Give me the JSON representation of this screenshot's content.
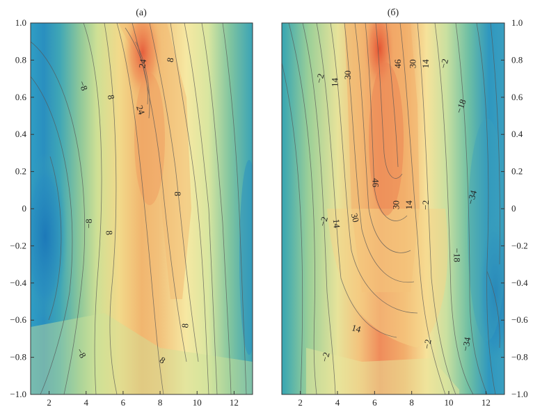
{
  "chart_data": [
    {
      "type": "heatmap",
      "title": "(а)",
      "xlabel": "",
      "ylabel": "",
      "xlim": [
        1,
        13
      ],
      "ylim": [
        -1.0,
        1.0
      ],
      "x_ticks": [
        "2",
        "4",
        "6",
        "8",
        "10",
        "12"
      ],
      "y_ticks": [
        "1.0",
        "0.8",
        "0.6",
        "0.4",
        "0.2",
        "0",
        "−0.2",
        "−0.4",
        "−0.6",
        "−0.8",
        "−1.0"
      ],
      "y_axis_side": "left",
      "colormap": "blue-green-yellow-orange-red",
      "contour_labels": [
        {
          "text": "24",
          "x": 7.1,
          "y": 0.78,
          "angle": -80
        },
        {
          "text": "24",
          "x": 6.9,
          "y": 0.53,
          "angle": 70
        },
        {
          "text": "8",
          "x": 8.6,
          "y": 0.8,
          "angle": -80
        },
        {
          "text": "−8",
          "x": 3.8,
          "y": 0.66,
          "angle": 70
        },
        {
          "text": "8",
          "x": 5.3,
          "y": 0.6,
          "angle": 80
        },
        {
          "text": "8",
          "x": 8.9,
          "y": 0.08,
          "angle": 90
        },
        {
          "text": "−8",
          "x": 4.2,
          "y": -0.08,
          "angle": -90
        },
        {
          "text": "8",
          "x": 5.2,
          "y": -0.13,
          "angle": 85
        },
        {
          "text": "8",
          "x": 9.4,
          "y": -0.63,
          "angle": -85
        },
        {
          "text": "−8",
          "x": 3.7,
          "y": -0.78,
          "angle": 60
        },
        {
          "text": "8",
          "x": 8.1,
          "y": -0.82,
          "angle": 35
        }
      ]
    },
    {
      "type": "heatmap",
      "title": "(б)",
      "xlabel": "",
      "ylabel": "",
      "xlim": [
        1,
        13
      ],
      "ylim": [
        -1.0,
        1.0
      ],
      "x_ticks": [
        "2",
        "4",
        "6",
        "8",
        "10",
        "12"
      ],
      "y_ticks": [
        "1.0",
        "0.8",
        "0.6",
        "0.4",
        "0.2",
        "0",
        "−0.2",
        "−0.4",
        "−0.6",
        "−0.8",
        "−1.0"
      ],
      "y_axis_side": "right",
      "colormap": "blue-green-yellow-orange-red",
      "contour_labels": [
        {
          "text": "30",
          "x": 4.6,
          "y": 0.72,
          "angle": -90
        },
        {
          "text": "46",
          "x": 7.3,
          "y": 0.78,
          "angle": -90
        },
        {
          "text": "30",
          "x": 8.1,
          "y": 0.78,
          "angle": -90
        },
        {
          "text": "14",
          "x": 8.8,
          "y": 0.78,
          "angle": -90
        },
        {
          "text": "−2",
          "x": 9.8,
          "y": 0.78,
          "angle": -75
        },
        {
          "text": "−2",
          "x": 3.1,
          "y": 0.7,
          "angle": -75
        },
        {
          "text": "14",
          "x": 3.9,
          "y": 0.68,
          "angle": -90
        },
        {
          "text": "−18",
          "x": 10.7,
          "y": 0.55,
          "angle": -70
        },
        {
          "text": "46",
          "x": 6.0,
          "y": 0.14,
          "angle": 90
        },
        {
          "text": "30",
          "x": 7.2,
          "y": 0.02,
          "angle": -90
        },
        {
          "text": "14",
          "x": 7.9,
          "y": 0.02,
          "angle": -90
        },
        {
          "text": "−2",
          "x": 8.8,
          "y": 0.02,
          "angle": -90
        },
        {
          "text": "−34",
          "x": 11.3,
          "y": 0.06,
          "angle": -75
        },
        {
          "text": "−2",
          "x": 3.3,
          "y": -0.07,
          "angle": -75
        },
        {
          "text": "14",
          "x": 3.9,
          "y": -0.08,
          "angle": 85
        },
        {
          "text": "30",
          "x": 4.9,
          "y": -0.05,
          "angle": 75
        },
        {
          "text": "−18",
          "x": 10.4,
          "y": -0.25,
          "angle": 90
        },
        {
          "text": "14",
          "x": 5.0,
          "y": -0.65,
          "angle": 15
        },
        {
          "text": "−2",
          "x": 8.9,
          "y": -0.73,
          "angle": -80
        },
        {
          "text": "−34",
          "x": 11.0,
          "y": -0.73,
          "angle": -80
        },
        {
          "text": "−2",
          "x": 3.4,
          "y": -0.8,
          "angle": -75
        }
      ]
    }
  ]
}
